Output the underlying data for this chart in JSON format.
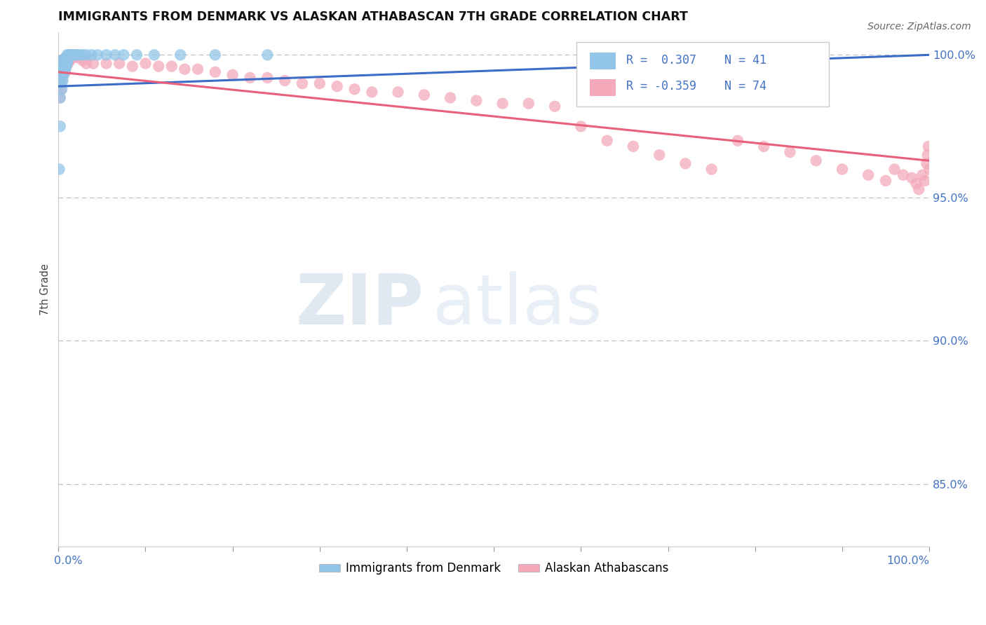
{
  "title": "IMMIGRANTS FROM DENMARK VS ALASKAN ATHABASCAN 7TH GRADE CORRELATION CHART",
  "source": "Source: ZipAtlas.com",
  "ylabel": "7th Grade",
  "xlim": [
    0.0,
    1.0
  ],
  "ylim": [
    0.828,
    1.008
  ],
  "yticks": [
    0.85,
    0.9,
    0.95,
    1.0
  ],
  "ytick_labels": [
    "85.0%",
    "90.0%",
    "95.0%",
    "100.0%"
  ],
  "blue_R": 0.307,
  "blue_N": 41,
  "pink_R": -0.359,
  "pink_N": 74,
  "blue_color": "#92C5E8",
  "pink_color": "#F4AABB",
  "blue_line_color": "#3A6CC8",
  "pink_line_color": "#E8607A",
  "legend_label_blue": "Immigrants from Denmark",
  "legend_label_pink": "Alaskan Athabascans",
  "watermark_zip": "ZIP",
  "watermark_atlas": "atlas",
  "blue_x": [
    0.001,
    0.002,
    0.002,
    0.003,
    0.003,
    0.003,
    0.004,
    0.004,
    0.004,
    0.005,
    0.005,
    0.005,
    0.006,
    0.006,
    0.007,
    0.007,
    0.008,
    0.008,
    0.009,
    0.01,
    0.01,
    0.011,
    0.012,
    0.013,
    0.015,
    0.017,
    0.02,
    0.022,
    0.025,
    0.028,
    0.032,
    0.038,
    0.045,
    0.055,
    0.065,
    0.075,
    0.09,
    0.11,
    0.14,
    0.18,
    0.24
  ],
  "blue_y": [
    0.96,
    0.975,
    0.985,
    0.99,
    0.995,
    0.998,
    0.988,
    0.992,
    0.996,
    0.991,
    0.994,
    0.998,
    0.993,
    0.997,
    0.994,
    0.998,
    0.995,
    0.999,
    0.996,
    0.997,
    1.0,
    0.998,
    1.0,
    1.0,
    1.0,
    1.0,
    1.0,
    1.0,
    1.0,
    1.0,
    1.0,
    1.0,
    1.0,
    1.0,
    1.0,
    1.0,
    1.0,
    1.0,
    1.0,
    1.0,
    1.0
  ],
  "pink_x": [
    0.001,
    0.002,
    0.002,
    0.003,
    0.003,
    0.004,
    0.004,
    0.005,
    0.005,
    0.006,
    0.007,
    0.008,
    0.008,
    0.009,
    0.01,
    0.011,
    0.012,
    0.013,
    0.015,
    0.017,
    0.02,
    0.023,
    0.028,
    0.032,
    0.04,
    0.055,
    0.07,
    0.085,
    0.1,
    0.115,
    0.13,
    0.145,
    0.16,
    0.18,
    0.2,
    0.22,
    0.24,
    0.26,
    0.28,
    0.3,
    0.32,
    0.34,
    0.36,
    0.39,
    0.42,
    0.45,
    0.48,
    0.51,
    0.54,
    0.57,
    0.6,
    0.63,
    0.66,
    0.69,
    0.72,
    0.75,
    0.78,
    0.81,
    0.84,
    0.87,
    0.9,
    0.93,
    0.95,
    0.96,
    0.97,
    0.98,
    0.985,
    0.988,
    0.992,
    0.995,
    0.997,
    0.998,
    0.999,
    1.0
  ],
  "pink_y": [
    0.99,
    0.985,
    0.992,
    0.988,
    0.995,
    0.991,
    0.997,
    0.993,
    0.998,
    0.995,
    0.997,
    0.994,
    0.998,
    0.996,
    0.999,
    0.997,
    1.0,
    0.998,
    1.0,
    0.999,
    1.0,
    0.999,
    0.998,
    0.997,
    0.997,
    0.997,
    0.997,
    0.996,
    0.997,
    0.996,
    0.996,
    0.995,
    0.995,
    0.994,
    0.993,
    0.992,
    0.992,
    0.991,
    0.99,
    0.99,
    0.989,
    0.988,
    0.987,
    0.987,
    0.986,
    0.985,
    0.984,
    0.983,
    0.983,
    0.982,
    0.975,
    0.97,
    0.968,
    0.965,
    0.962,
    0.96,
    0.97,
    0.968,
    0.966,
    0.963,
    0.96,
    0.958,
    0.956,
    0.96,
    0.958,
    0.957,
    0.955,
    0.953,
    0.958,
    0.956,
    0.962,
    0.965,
    0.968,
    0.96
  ],
  "blue_line_x0": 0.0,
  "blue_line_x1": 1.0,
  "blue_line_y0": 0.989,
  "blue_line_y1": 1.0,
  "pink_line_x0": 0.0,
  "pink_line_x1": 1.0,
  "pink_line_y0": 0.994,
  "pink_line_y1": 0.963
}
